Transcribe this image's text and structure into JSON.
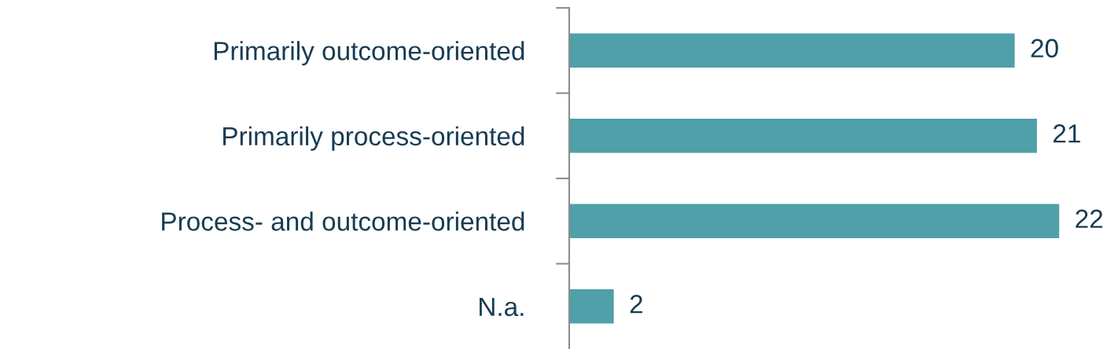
{
  "chart_data": {
    "type": "bar",
    "orientation": "horizontal",
    "categories": [
      "Primarily outcome-oriented",
      "Primarily process-oriented",
      "Process- and outcome-oriented",
      "N.a."
    ],
    "values": [
      20,
      21,
      22,
      2
    ],
    "color": "#4fa0a8",
    "data_labels": true,
    "grid": false,
    "legend": false
  }
}
